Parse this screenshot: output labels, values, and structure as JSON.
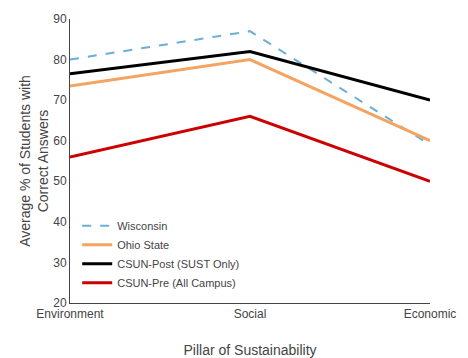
{
  "chart_data": {
    "type": "line",
    "categories": [
      "Environment",
      "Social",
      "Economic"
    ],
    "series": [
      {
        "name": "Wisconsin",
        "color": "#6BAED6",
        "line_style": "dashed",
        "values": [
          80,
          87,
          59
        ]
      },
      {
        "name": "Ohio State",
        "color": "#F4A460",
        "line_style": "solid",
        "values": [
          73.5,
          80,
          60
        ]
      },
      {
        "name": "CSUN-Post (SUST Only)",
        "color": "#000000",
        "line_style": "solid",
        "values": [
          76.5,
          82,
          70
        ]
      },
      {
        "name": "CSUN-Pre (All Campus)",
        "color": "#CC0000",
        "line_style": "solid",
        "values": [
          56,
          66,
          50
        ]
      }
    ],
    "xlabel": "Pillar of Sustainability",
    "ylabel": "Average % of Students with\nCorrect Answers",
    "ylim": [
      20,
      90
    ],
    "yticks": [
      20,
      30,
      40,
      50,
      60,
      70,
      80,
      90
    ],
    "grid": false,
    "legend": "lower left"
  }
}
